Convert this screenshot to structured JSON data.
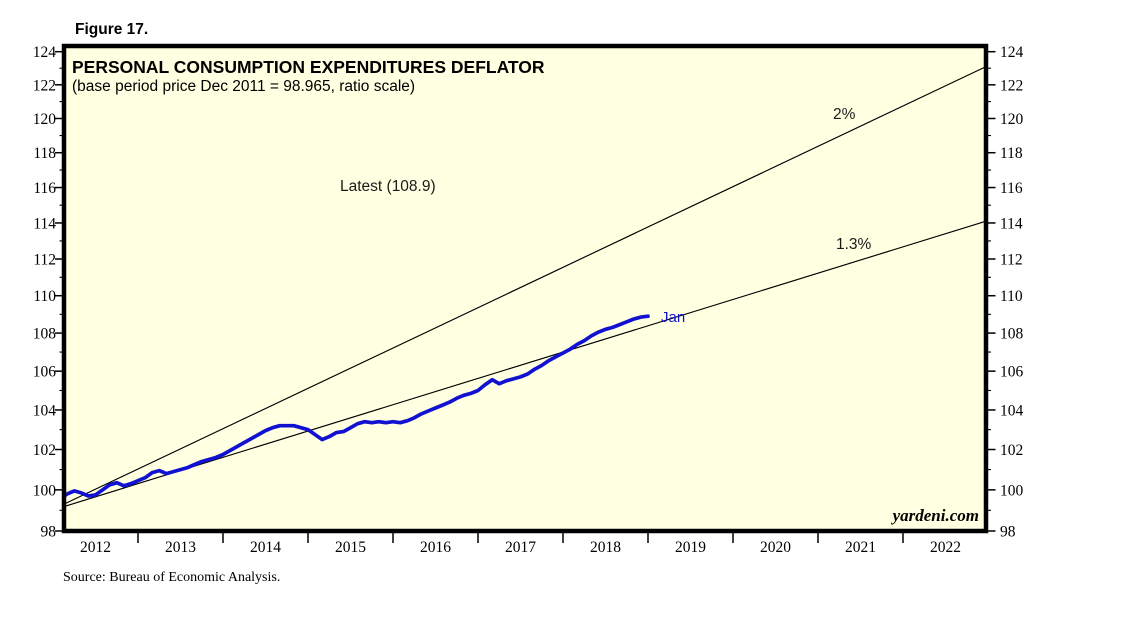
{
  "figure_label": "Figure 17.",
  "chart_data": {
    "type": "line",
    "title": "PERSONAL CONSUMPTION EXPENDITURES DEFLATOR",
    "subtitle": "(base period price Dec 2011 = 98.965, ratio scale)",
    "source": "Source: Bureau of Economic Analysis.",
    "watermark": "yardeni.com",
    "latest_annotation": "Latest (108.9)",
    "background_color": "#FFFFE1",
    "y_axis": {
      "min": 98,
      "max": 124,
      "scale": "ratio (log)",
      "major_tick_step": 2,
      "minor_tick_step": 1,
      "labels_both_sides": true
    },
    "x_axis": {
      "start_year": 2012,
      "end_year": 2023,
      "tick_interval_years": 1,
      "year_labels": [
        "2012",
        "2013",
        "2014",
        "2015",
        "2016",
        "2017",
        "2018",
        "2019",
        "2020",
        "2021",
        "2022"
      ]
    },
    "trend_lines": [
      {
        "label": "2%",
        "annual_rate_pct": 2.0,
        "base_value": 98.965,
        "base_period": "Dec 2011",
        "end_value_approx": 123.1
      },
      {
        "label": "1.3%",
        "annual_rate_pct": 1.3,
        "base_value": 98.965,
        "base_period": "Dec 2011",
        "end_value_approx": 114.2
      }
    ],
    "series": [
      {
        "name": "Personal Consumption Expenditures Deflator",
        "color": "#1111D2",
        "frequency": "monthly",
        "start": "2012-01",
        "end": "2019-01",
        "end_label": "Jan",
        "latest_value": 108.9,
        "values": [
          99.25,
          99.55,
          99.8,
          99.95,
          99.85,
          99.7,
          99.75,
          100.0,
          100.25,
          100.35,
          100.2,
          100.3,
          100.45,
          100.6,
          100.85,
          100.95,
          100.8,
          100.9,
          101.0,
          101.1,
          101.25,
          101.4,
          101.5,
          101.6,
          101.75,
          101.95,
          102.15,
          102.35,
          102.55,
          102.75,
          102.95,
          103.1,
          103.2,
          103.2,
          103.2,
          103.1,
          103.0,
          102.75,
          102.5,
          102.65,
          102.85,
          102.9,
          103.1,
          103.3,
          103.4,
          103.35,
          103.4,
          103.35,
          103.4,
          103.35,
          103.45,
          103.6,
          103.8,
          103.95,
          104.1,
          104.25,
          104.4,
          104.6,
          104.75,
          104.85,
          105.0,
          105.3,
          105.55,
          105.35,
          105.5,
          105.6,
          105.7,
          105.85,
          106.1,
          106.3,
          106.55,
          106.75,
          106.95,
          107.15,
          107.4,
          107.6,
          107.85,
          108.05,
          108.2,
          108.3,
          108.45,
          108.6,
          108.75,
          108.85,
          108.9
        ]
      }
    ]
  }
}
